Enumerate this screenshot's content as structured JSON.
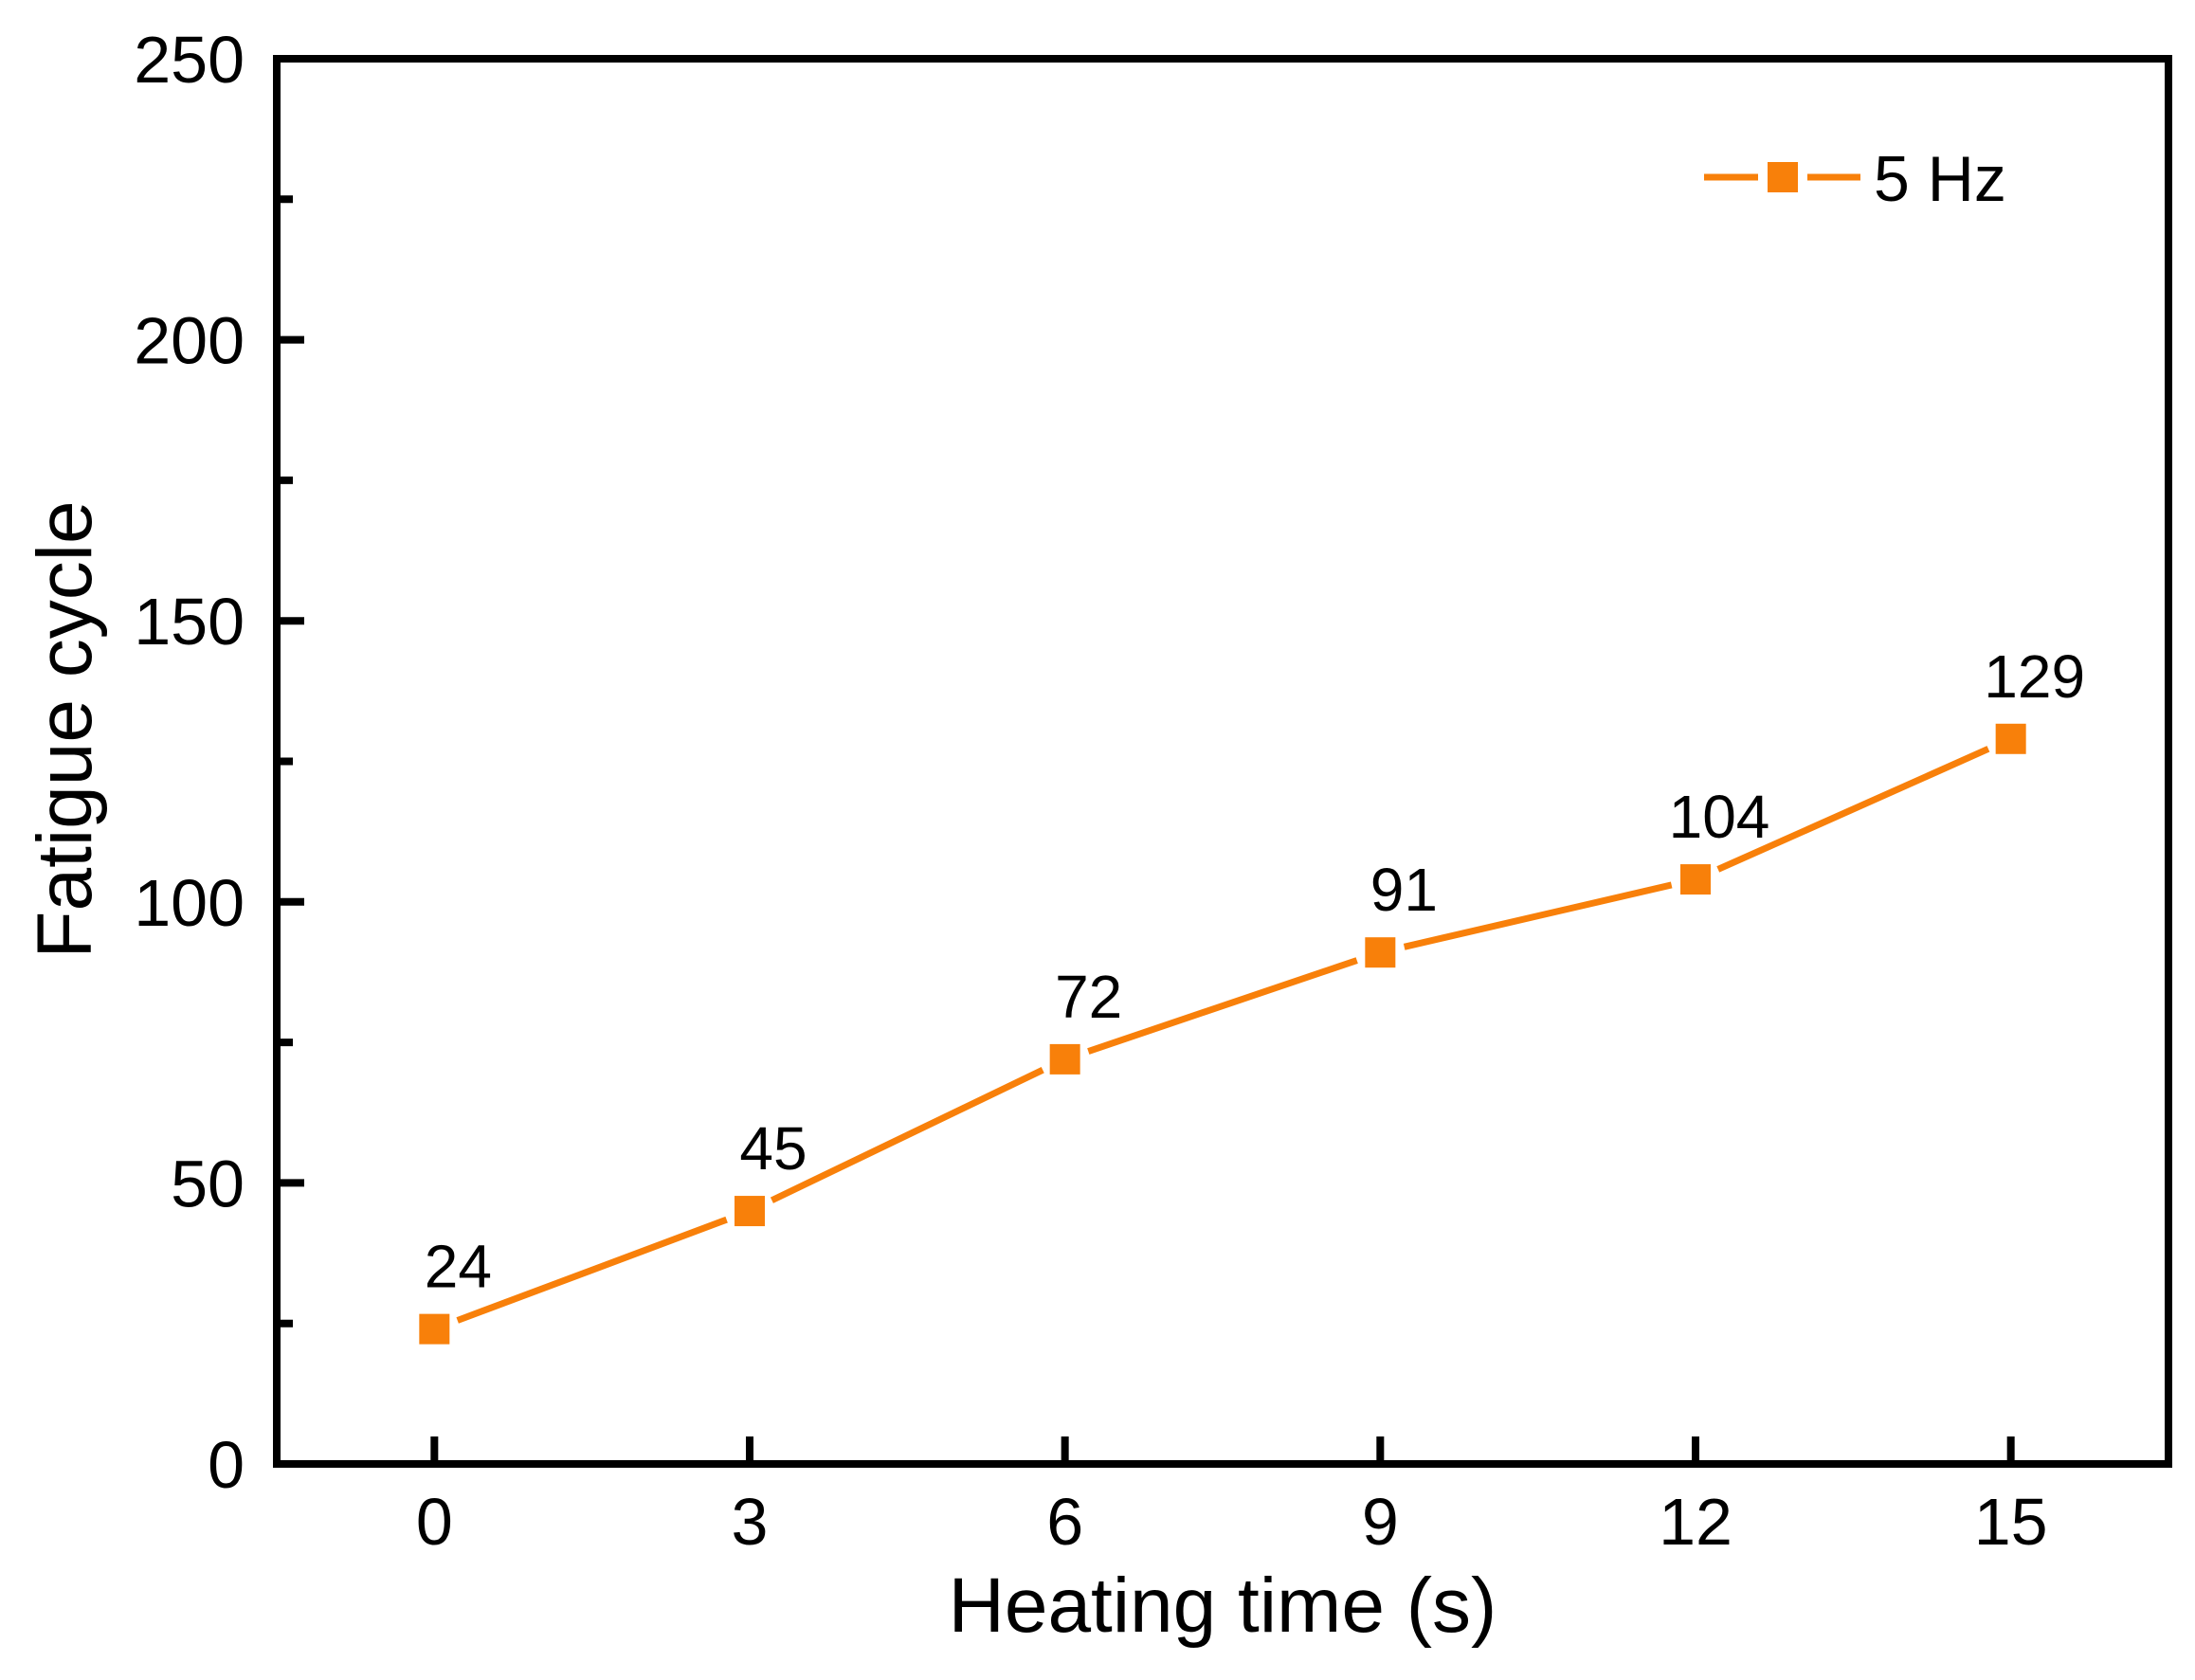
{
  "chart_data": {
    "type": "line",
    "title": "",
    "xlabel": "Heating time (s)",
    "ylabel": "Fatigue cycle",
    "x": [
      0,
      3,
      6,
      9,
      12,
      15
    ],
    "series": [
      {
        "name": "5 Hz",
        "values": [
          24,
          45,
          72,
          91,
          104,
          129
        ],
        "color": "#F8800A",
        "marker": "square",
        "point_labels": [
          "24",
          "45",
          "72",
          "91",
          "104",
          "129"
        ]
      }
    ],
    "xlim": [
      -1.5,
      16.5
    ],
    "ylim": [
      0,
      250
    ],
    "x_ticks": [
      0,
      3,
      6,
      9,
      12,
      15
    ],
    "x_tick_labels": [
      "0",
      "3",
      "6",
      "9",
      "12",
      "15"
    ],
    "y_ticks": [
      0,
      50,
      100,
      150,
      200,
      250
    ],
    "y_tick_labels": [
      "0",
      "50",
      "100",
      "150",
      "200",
      "250"
    ],
    "y_minor_ticks": [
      25,
      75,
      125,
      175,
      225
    ],
    "grid": false,
    "tick_direction": "in",
    "legend": {
      "position": "top-right",
      "entries": [
        "5 Hz"
      ]
    }
  },
  "colors": {
    "series": "#F8800A",
    "axis": "#000000",
    "background": "#FFFFFF"
  }
}
